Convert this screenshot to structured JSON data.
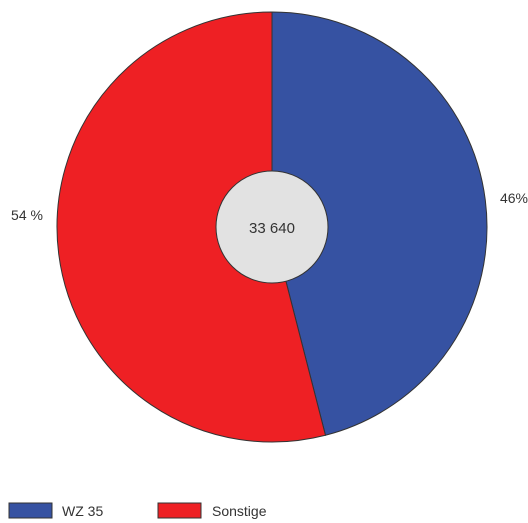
{
  "chart_data": {
    "type": "pie",
    "variant": "donut-with-center-total",
    "total": "33 640",
    "slices": [
      {
        "name": "WZ 35",
        "value": 46,
        "label": "46%",
        "color": "#3652a2"
      },
      {
        "name": "Sonstige",
        "value": 54,
        "label": "54 %",
        "color": "#ee2024"
      }
    ],
    "start_angle_deg": 0,
    "direction": "clockwise",
    "center_color": "#e2e2e2",
    "legend": {
      "placement": "bottom-left",
      "items": [
        {
          "label": "WZ 35",
          "color": "#3652a2"
        },
        {
          "label": "Sonstige",
          "color": "#ee2024"
        }
      ]
    }
  }
}
